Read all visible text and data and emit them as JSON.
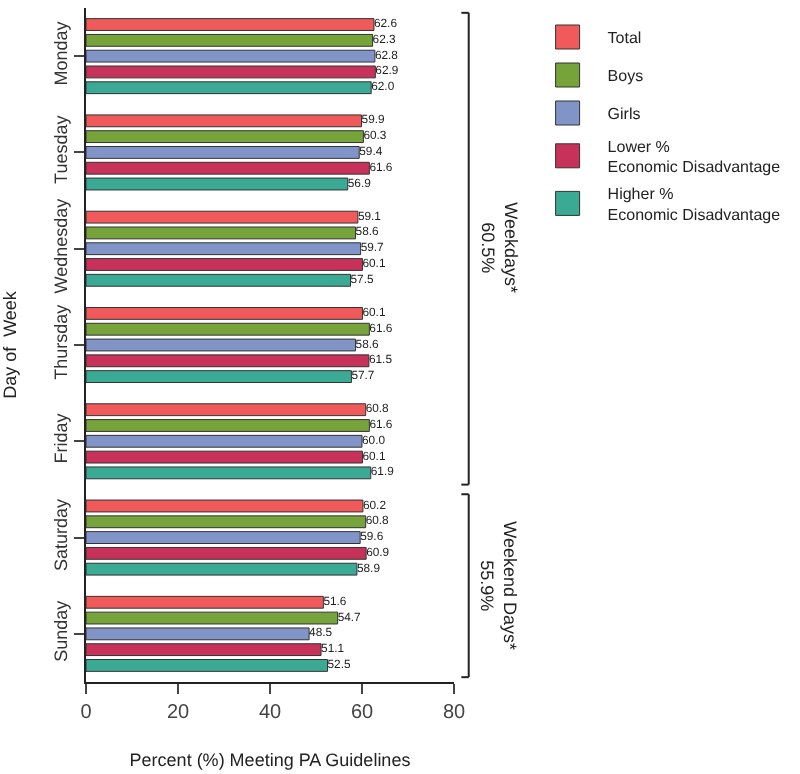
{
  "chart_data": {
    "type": "bar",
    "orientation": "horizontal",
    "xlabel": "Percent (%) Meeting PA Guidelines",
    "ylabel": "Day of  Week",
    "categories": [
      "Monday",
      "Tuesday",
      "Wednesday",
      "Thursday",
      "Friday",
      "Saturday",
      "Sunday"
    ],
    "series": [
      {
        "name": "Total",
        "color": "#f05a5a",
        "values": [
          62.6,
          59.9,
          59.1,
          60.1,
          60.8,
          60.2,
          51.6
        ],
        "value_labels": [
          "62.6",
          "59.9",
          "59.1",
          "60.1",
          "60.8",
          "60.2",
          "51.6"
        ]
      },
      {
        "name": "Boys",
        "color": "#76a33a",
        "values": [
          62.3,
          60.3,
          58.6,
          61.6,
          61.6,
          60.8,
          54.7
        ],
        "value_labels": [
          "62.3",
          "60.3",
          "58.6",
          "61.6",
          "61.6",
          "60.8",
          "54.7"
        ]
      },
      {
        "name": "Girls",
        "color": "#8194c8",
        "values": [
          62.8,
          59.4,
          59.7,
          58.6,
          60.0,
          59.6,
          48.5
        ],
        "value_labels": [
          "62.8",
          "59.4",
          "59.7",
          "58.6",
          "60.0",
          "59.6",
          "48.5"
        ]
      },
      {
        "name": "Lower % Economic Disadvantage",
        "color": "#c8325a",
        "values": [
          62.9,
          61.6,
          60.1,
          61.5,
          60.1,
          60.9,
          51.1
        ],
        "value_labels": [
          "62.9",
          "61.6",
          "60.1",
          "61.5",
          "60.1",
          "60.9",
          "51.1"
        ]
      },
      {
        "name": "Higher % Economic Disadvantage",
        "color": "#3aaa94",
        "values": [
          62.0,
          56.9,
          57.5,
          57.7,
          61.9,
          58.9,
          52.5
        ],
        "value_labels": [
          "62.0",
          "56.9",
          "57.5",
          "57.7",
          "61.9",
          "58.9",
          "52.5"
        ]
      }
    ],
    "xlim": [
      0,
      80
    ],
    "xticks": [
      0,
      20,
      40,
      60,
      80
    ],
    "legend": "top right",
    "annotations": [
      "Weekdays*\n60.5%",
      "Weekend Days*\n55.9%"
    ]
  }
}
